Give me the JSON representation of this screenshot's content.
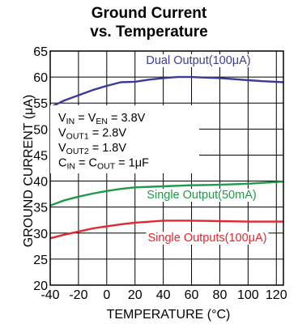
{
  "chart_data": {
    "type": "line",
    "title_lines": [
      "Ground Current",
      "vs. Temperature"
    ],
    "xlabel": "TEMPERATURE (°C)",
    "ylabel": "GROUND CURRENT (μA)",
    "xlim": [
      -40,
      125
    ],
    "ylim": [
      20,
      65
    ],
    "xticks": [
      -40,
      -20,
      0,
      20,
      40,
      60,
      80,
      100,
      120
    ],
    "yticks": [
      20,
      25,
      30,
      35,
      40,
      45,
      50,
      55,
      60,
      65
    ],
    "grid": true,
    "series": [
      {
        "name": "Dual Output(100μA)",
        "color": "#3b3b97",
        "x": [
          -40,
          -30,
          -20,
          -10,
          0,
          10,
          20,
          30,
          40,
          50,
          60,
          70,
          80,
          90,
          100,
          110,
          125
        ],
        "y": [
          54.2,
          55.5,
          56.5,
          57.5,
          58.3,
          59.0,
          59.1,
          59.5,
          59.8,
          60.0,
          60.0,
          59.9,
          59.8,
          59.6,
          59.4,
          59.2,
          59.0
        ]
      },
      {
        "name": "Single Output(50mA)",
        "color": "#1f9a48",
        "x": [
          -40,
          -30,
          -20,
          -10,
          0,
          10,
          20,
          40,
          60,
          80,
          100,
          125
        ],
        "y": [
          35.3,
          36.3,
          37.0,
          37.6,
          38.1,
          38.5,
          38.8,
          39.0,
          39.2,
          39.3,
          39.5,
          39.9
        ]
      },
      {
        "name": "Single Outputs(100μA)",
        "color": "#e2272e",
        "x": [
          -40,
          -30,
          -20,
          -10,
          0,
          10,
          20,
          40,
          60,
          80,
          100,
          125
        ],
        "y": [
          29.0,
          29.7,
          30.3,
          30.9,
          31.3,
          31.7,
          32.0,
          32.4,
          32.4,
          32.3,
          32.2,
          32.2
        ]
      }
    ],
    "conditions": [
      {
        "sym": "C",
        "sub": "IN",
        "mid": " = C",
        "sub2": "OUT",
        "rest": " = 1μF"
      }
    ],
    "condition_lines": [
      {
        "parts": [
          [
            "V",
            ""
          ],
          [
            "IN",
            "sub"
          ],
          [
            " = V",
            ""
          ],
          [
            "EN",
            "sub"
          ],
          [
            " = 3.8V",
            ""
          ]
        ]
      },
      {
        "parts": [
          [
            "V",
            ""
          ],
          [
            "OUT1",
            "sub"
          ],
          [
            " = 2.8V",
            ""
          ]
        ]
      },
      {
        "parts": [
          [
            "V",
            ""
          ],
          [
            "OUT2",
            "sub"
          ],
          [
            " = 1.8V",
            ""
          ]
        ]
      },
      {
        "parts": [
          [
            "C",
            ""
          ],
          [
            "IN",
            "sub"
          ],
          [
            " = C",
            ""
          ],
          [
            "OUT",
            "sub"
          ],
          [
            " = 1μF",
            ""
          ]
        ]
      }
    ]
  }
}
